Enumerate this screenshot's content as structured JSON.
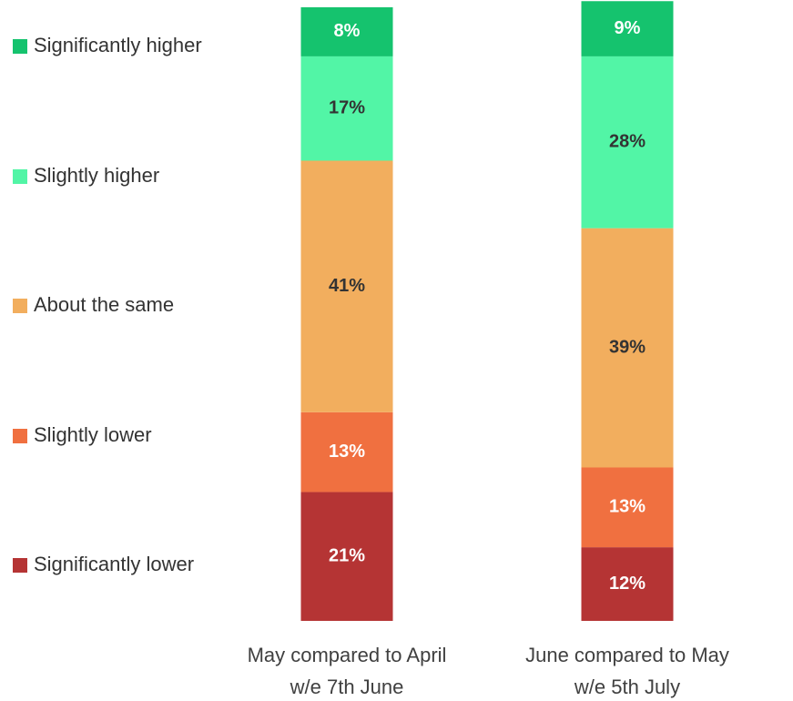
{
  "chart_data": {
    "type": "stacked_bar",
    "categories": [
      [
        "May compared to April",
        "w/e 7th June"
      ],
      [
        "June compared to May",
        "w/e 5th July"
      ]
    ],
    "series": [
      {
        "name": "Significantly lower",
        "color": "#b53434",
        "label_color": "#ffffff",
        "values": [
          21,
          12
        ],
        "value_labels": [
          "21%",
          "12%"
        ]
      },
      {
        "name": "Slightly lower",
        "color": "#f07040",
        "label_color": "#ffffff",
        "values": [
          13,
          13
        ],
        "value_labels": [
          "13%",
          "13%"
        ]
      },
      {
        "name": "About the same",
        "color": "#f2ae5e",
        "label_color": "#333333",
        "values": [
          41,
          39
        ],
        "value_labels": [
          "41%",
          "39%"
        ]
      },
      {
        "name": "Slightly higher",
        "color": "#52f5a6",
        "label_color": "#333333",
        "values": [
          17,
          28
        ],
        "value_labels": [
          "17%",
          "28%"
        ]
      },
      {
        "name": "Significantly higher",
        "color": "#15c36e",
        "label_color": "#ffffff",
        "values": [
          8,
          9
        ],
        "value_labels": [
          "8%",
          "9%"
        ]
      }
    ],
    "ylim": [
      0,
      100
    ],
    "legend": "left"
  }
}
